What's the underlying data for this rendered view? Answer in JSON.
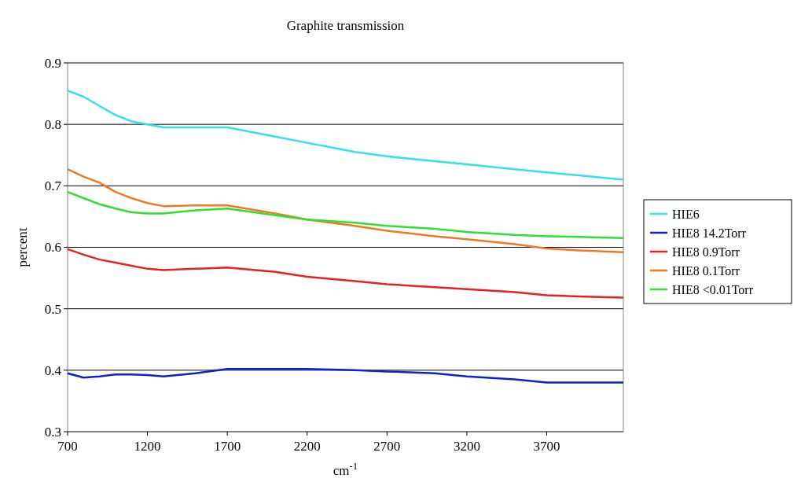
{
  "chart_data": {
    "type": "line",
    "title": "Graphite transmission",
    "xlabel": "cm$^{-1}$",
    "ylabel": "percent",
    "xlim": [
      700,
      4180
    ],
    "xticks": [
      700,
      1200,
      1700,
      2200,
      2700,
      3200,
      3700
    ],
    "ylim": [
      0.3,
      0.9
    ],
    "yticks": [
      0.3,
      0.4,
      0.5,
      0.6,
      0.7,
      0.8,
      0.9
    ],
    "grid": "y",
    "legend": "right",
    "marker": "none",
    "line_style": "solid",
    "x": [
      700,
      800,
      900,
      1000,
      1100,
      1200,
      1300,
      1500,
      1700,
      2000,
      2200,
      2500,
      2700,
      3000,
      3200,
      3500,
      3700,
      3900,
      4180
    ],
    "series": [
      {
        "name": "HIE6",
        "color": "#33e0f0",
        "values": [
          0.855,
          0.845,
          0.83,
          0.815,
          0.805,
          0.8,
          0.795,
          0.795,
          0.795,
          0.78,
          0.77,
          0.755,
          0.748,
          0.74,
          0.735,
          0.727,
          0.722,
          0.717,
          0.71
        ]
      },
      {
        "name": "HIE8 14.2Torr",
        "color": "#1020d0",
        "values": [
          0.395,
          0.388,
          0.39,
          0.393,
          0.393,
          0.392,
          0.39,
          0.395,
          0.402,
          0.402,
          0.402,
          0.4,
          0.398,
          0.395,
          0.39,
          0.385,
          0.38,
          0.38,
          0.38
        ]
      },
      {
        "name": "HIE8 0.9Torr",
        "color": "#e82020",
        "values": [
          0.597,
          0.588,
          0.58,
          0.575,
          0.57,
          0.565,
          0.563,
          0.565,
          0.567,
          0.56,
          0.552,
          0.545,
          0.54,
          0.535,
          0.532,
          0.527,
          0.522,
          0.52,
          0.518
        ]
      },
      {
        "name": "HIE8 0.1Torr",
        "color": "#f07820",
        "values": [
          0.727,
          0.715,
          0.705,
          0.69,
          0.68,
          0.672,
          0.667,
          0.668,
          0.668,
          0.655,
          0.645,
          0.635,
          0.627,
          0.618,
          0.613,
          0.605,
          0.598,
          0.595,
          0.592
        ]
      },
      {
        "name": "HIE8 <0.01Torr",
        "color": "#30e030",
        "values": [
          0.69,
          0.68,
          0.67,
          0.663,
          0.657,
          0.655,
          0.655,
          0.66,
          0.663,
          0.652,
          0.645,
          0.64,
          0.635,
          0.63,
          0.625,
          0.62,
          0.618,
          0.617,
          0.615
        ]
      }
    ]
  }
}
